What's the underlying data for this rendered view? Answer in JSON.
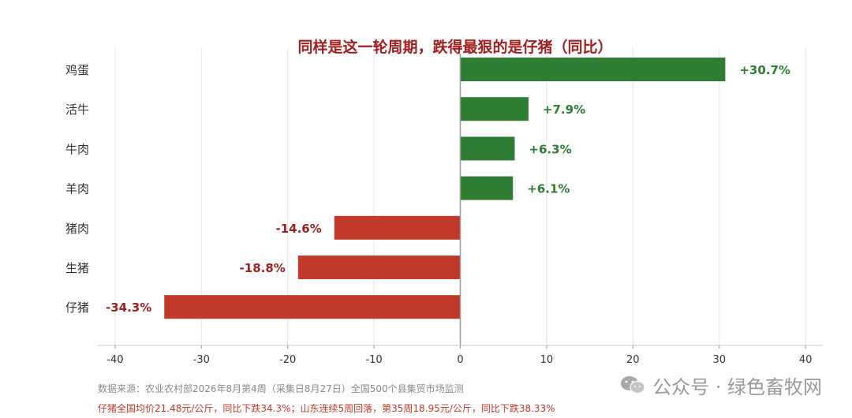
{
  "chart_data": {
    "type": "bar",
    "orientation": "horizontal",
    "title": "同样是这一轮周期，跌得最狠的是仔猪（同比）",
    "categories": [
      "鸡蛋",
      "活牛",
      "牛肉",
      "羊肉",
      "猪肉",
      "生猪",
      "仔猪"
    ],
    "values": [
      30.7,
      7.9,
      6.3,
      6.1,
      -14.6,
      -18.8,
      -34.3
    ],
    "data_labels": [
      "+30.7%",
      "+7.9%",
      "+6.3%",
      "+6.1%",
      "-14.6%",
      "-18.8%",
      "-34.3%"
    ],
    "xlim": [
      -42,
      42
    ],
    "xticks": [
      -40,
      -30,
      -20,
      -10,
      0,
      10,
      20,
      30,
      40
    ],
    "xlabel": "",
    "ylabel": "",
    "grid": "vertical",
    "colors": {
      "positive": "#2e7d32",
      "negative": "#c0392b",
      "title": "#a31f1f"
    }
  },
  "notes": {
    "source": "数据来源：农业农村部2026年8月第4周（采集日8月27日）全国500个县集贸市场监测",
    "highlight": "仔猪全国均价21.48元/公斤，同比下跌34.3%；山东连续5周回落，第35周18.95元/公斤，同比下跌38.33%"
  },
  "watermark": {
    "text": "公众号 · 绿色畜牧网",
    "icon": "wechat-icon"
  }
}
